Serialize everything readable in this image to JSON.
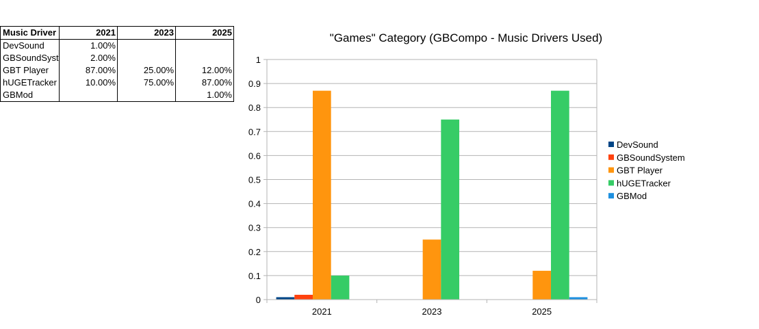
{
  "table": {
    "header": [
      "Music Driver",
      "2021",
      "2023",
      "2025"
    ],
    "rows": [
      [
        "DevSound",
        "1.00%",
        "",
        ""
      ],
      [
        "GBSoundSyst",
        "2.00%",
        "",
        ""
      ],
      [
        "GBT Player",
        "87.00%",
        "25.00%",
        "12.00%"
      ],
      [
        "hUGETracker",
        "10.00%",
        "75.00%",
        "87.00%"
      ],
      [
        "GBMod",
        "",
        "",
        "1.00%"
      ]
    ]
  },
  "chart_data": {
    "type": "bar",
    "title": "\"Games\" Category (GBCompo - Music Drivers Used)",
    "categories": [
      "2021",
      "2023",
      "2025"
    ],
    "series": [
      {
        "name": "DevSound",
        "color": "#004586",
        "values": [
          0.01,
          0,
          0
        ]
      },
      {
        "name": "GBSoundSystem",
        "color": "#ff420e",
        "values": [
          0.02,
          0,
          0
        ]
      },
      {
        "name": "GBT Player",
        "color": "#ff950e",
        "values": [
          0.87,
          0.25,
          0.12
        ]
      },
      {
        "name": "hUGETracker",
        "color": "#36cc66",
        "values": [
          0.1,
          0.75,
          0.87
        ]
      },
      {
        "name": "GBMod",
        "color": "#1e90e0",
        "values": [
          0,
          0,
          0.01
        ]
      }
    ],
    "yticks": [
      "0",
      "0.1",
      "0.2",
      "0.3",
      "0.4",
      "0.5",
      "0.6",
      "0.7",
      "0.8",
      "0.9",
      "1"
    ],
    "ylim": [
      0,
      1
    ],
    "grid": true,
    "legend": "right"
  }
}
